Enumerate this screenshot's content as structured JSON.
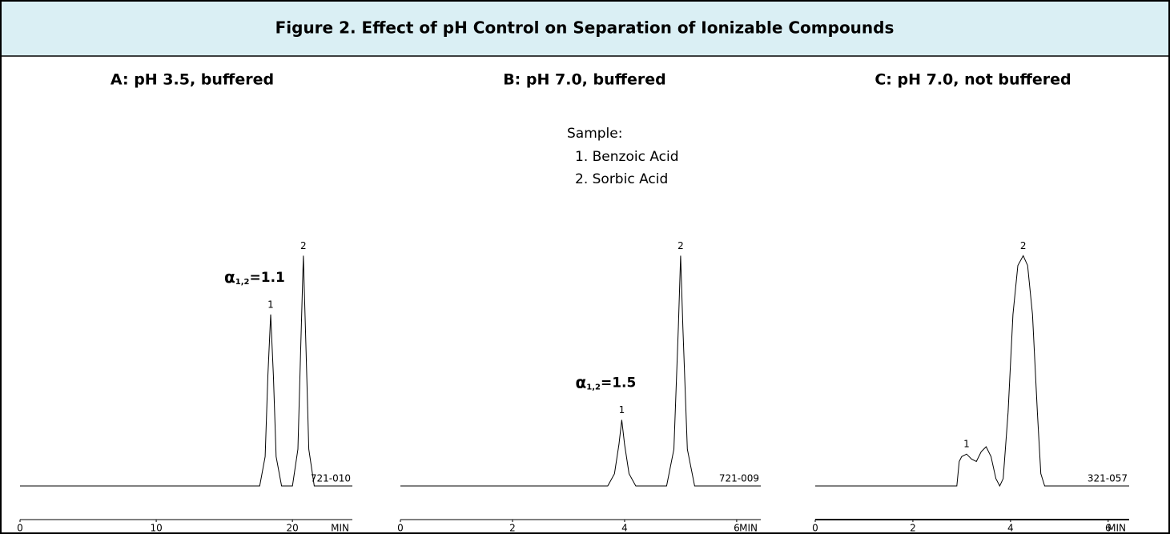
{
  "figure": {
    "title": "Figure 2. Effect of pH Control on Separation of Ionizable Compounds"
  },
  "sample": {
    "title": "Sample:",
    "items": [
      "1.  Benzoic Acid",
      "2.  Sorbic Acid"
    ]
  },
  "chart_data": [
    {
      "type": "line",
      "title": "A: pH 3.5, buffered",
      "code": "721-010",
      "x_label": "MIN",
      "x": [
        0,
        17.6,
        18.0,
        18.2,
        18.4,
        18.6,
        18.8,
        19.2,
        20.0,
        20.4,
        20.6,
        20.8,
        21.0,
        21.2,
        21.6,
        24.4
      ],
      "values": [
        0,
        0,
        12,
        45,
        70,
        45,
        12,
        0,
        0,
        15,
        55,
        94,
        55,
        15,
        0,
        0
      ],
      "xlim": [
        0,
        24.4
      ],
      "xticks": [
        0,
        10,
        20
      ],
      "color": "#000000",
      "peak_labels": [
        "1",
        "2"
      ],
      "alpha_label": {
        "symbol": "α",
        "subscript": "1,2",
        "text": "=1.1"
      }
    },
    {
      "type": "line",
      "title": "B: pH 7.0, buffered",
      "code": "721-009",
      "x_label": "MIN",
      "x": [
        0,
        3.7,
        3.82,
        3.9,
        3.95,
        4.0,
        4.08,
        4.2,
        4.75,
        4.88,
        4.96,
        5.0,
        5.04,
        5.12,
        5.25,
        6.43
      ],
      "values": [
        0,
        0,
        5,
        17,
        27,
        17,
        5,
        0,
        0,
        15,
        65,
        94,
        65,
        15,
        0,
        0
      ],
      "xlim": [
        0,
        6.43
      ],
      "xticks": [
        0,
        2,
        4,
        6
      ],
      "color": "#000000",
      "peak_labels": [
        "1",
        "2"
      ],
      "alpha_label": {
        "symbol": "α",
        "subscript": "1,2",
        "text": "=1.5"
      }
    },
    {
      "type": "line",
      "title": "C:  pH 7.0, not buffered",
      "code": "321-057",
      "x_label": "MIN",
      "x": [
        0,
        2.9,
        2.95,
        3.0,
        3.1,
        3.2,
        3.3,
        3.4,
        3.5,
        3.6,
        3.7,
        3.78,
        3.85,
        3.95,
        4.05,
        4.15,
        4.26,
        4.35,
        4.45,
        4.55,
        4.62,
        4.7,
        6.43
      ],
      "values": [
        0,
        0,
        10,
        12,
        13,
        11,
        10,
        14,
        16,
        12,
        3,
        0,
        3,
        30,
        70,
        90,
        94,
        90,
        70,
        30,
        5,
        0,
        0
      ],
      "xlim": [
        0,
        6.43
      ],
      "xticks": [
        0,
        2,
        4,
        6
      ],
      "color": "#000000",
      "peak_labels": [
        "1",
        "2"
      ]
    }
  ]
}
